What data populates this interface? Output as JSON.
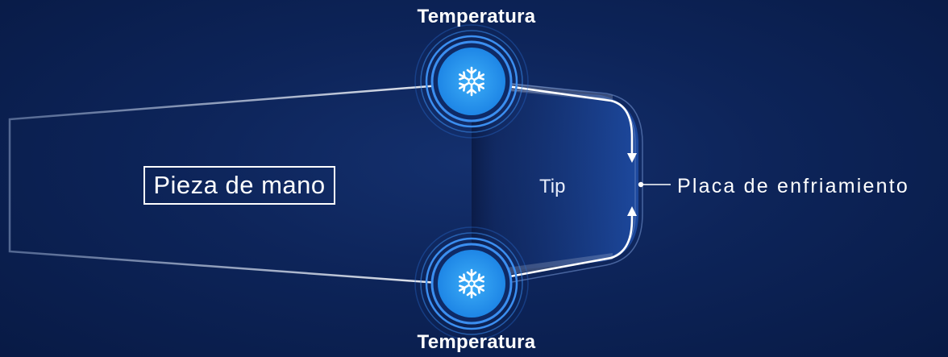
{
  "labels": {
    "temperature_top": "Temperatura",
    "temperature_bottom": "Temperatura",
    "handpiece": "Pieza de mano",
    "tip": "Tip",
    "cooling_plate": "Placa de enfriamiento"
  },
  "icons": {
    "sensor_top": "snowflake-icon",
    "sensor_bottom": "snowflake-icon"
  },
  "colors": {
    "background": "#0b1d4a",
    "sensor": "#2f9cf0",
    "ring": "#3b8ef0",
    "text": "#ffffff"
  }
}
